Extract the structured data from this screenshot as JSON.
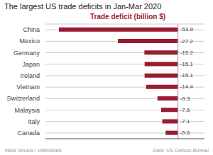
{
  "chart_data": {
    "type": "bar",
    "orientation": "horizontal",
    "title": "The largest US trade deficits in Jan-Mar 2020",
    "xlabel": "Trade deficit (billion $)",
    "categories": [
      "China",
      "Mexico",
      "Germany",
      "Japan",
      "Ireland",
      "Vietnam",
      "Switzerland",
      "Malaysia",
      "Italy",
      "Canada"
    ],
    "values": [
      -53.9,
      -27.2,
      -15.2,
      -15.1,
      -15.1,
      -14.4,
      -9.3,
      -7.6,
      -7.1,
      -5.6
    ],
    "color": "#9b1c31",
    "xlim": [
      -60,
      12
    ],
    "grid": true,
    "data_labels": true,
    "tick_labels": "y",
    "annotations": [
      "Vikas Shukla / VideoWalls",
      "Data: US Census Bureau"
    ]
  }
}
